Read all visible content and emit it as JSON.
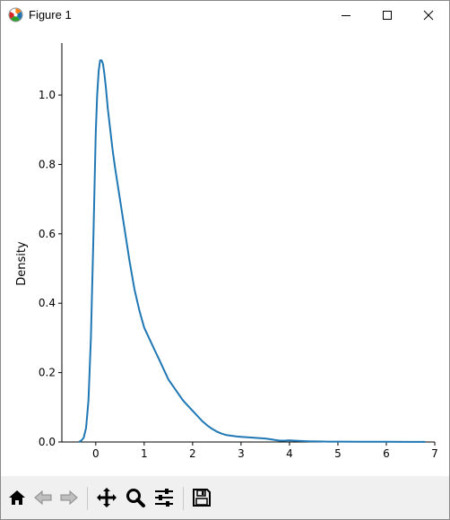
{
  "window": {
    "title": "Figure 1",
    "controls": {
      "minimize": "minimize-icon",
      "maximize": "maximize-icon",
      "close": "close-icon"
    }
  },
  "toolbar": {
    "buttons": [
      {
        "name": "home-button",
        "icon": "home-icon"
      },
      {
        "name": "back-button",
        "icon": "left-arrow-icon"
      },
      {
        "name": "forward-button",
        "icon": "right-arrow-icon"
      },
      {
        "name": "pan-button",
        "icon": "move-icon"
      },
      {
        "name": "zoom-button",
        "icon": "magnifier-icon"
      },
      {
        "name": "configure-subplots-button",
        "icon": "sliders-icon"
      },
      {
        "name": "save-button",
        "icon": "floppy-disk-icon"
      }
    ]
  },
  "chart_data": {
    "type": "line",
    "title": "",
    "xlabel": "",
    "ylabel": "Density",
    "xlim": [
      -0.7,
      7.0
    ],
    "ylim": [
      0.0,
      1.15
    ],
    "xticks": [
      0,
      1,
      2,
      3,
      4,
      5,
      6,
      7
    ],
    "yticks": [
      0.0,
      0.2,
      0.4,
      0.6,
      0.8,
      1.0
    ],
    "xtick_labels": [
      "0",
      "1",
      "2",
      "3",
      "4",
      "5",
      "6",
      "7"
    ],
    "ytick_labels": [
      "0.0",
      "0.2",
      "0.4",
      "0.6",
      "0.8",
      "1.0"
    ],
    "grid": false,
    "line_color": "#1f77b4",
    "series": [
      {
        "x": [
          -0.35,
          -0.3,
          -0.25,
          -0.2,
          -0.15,
          -0.1,
          -0.05,
          0.0,
          0.03,
          0.06,
          0.09,
          0.12,
          0.15,
          0.18,
          0.21,
          0.25,
          0.3,
          0.35,
          0.4,
          0.5,
          0.6,
          0.7,
          0.8,
          0.9,
          1.0,
          1.1,
          1.2,
          1.3,
          1.4,
          1.5,
          1.6,
          1.7,
          1.8,
          1.9,
          2.0,
          2.1,
          2.2,
          2.3,
          2.4,
          2.5,
          2.6,
          2.7,
          2.8,
          2.9,
          3.0,
          3.1,
          3.2,
          3.3,
          3.4,
          3.5,
          3.6,
          3.7,
          3.8,
          3.9,
          4.0,
          4.1,
          4.2,
          4.4,
          4.6,
          4.8,
          5.0,
          5.5,
          6.0,
          6.5,
          6.8
        ],
        "y": [
          0.0,
          0.004,
          0.012,
          0.04,
          0.12,
          0.3,
          0.58,
          0.89,
          1.0,
          1.07,
          1.1,
          1.1,
          1.09,
          1.06,
          1.02,
          0.96,
          0.9,
          0.84,
          0.79,
          0.7,
          0.61,
          0.52,
          0.44,
          0.38,
          0.33,
          0.3,
          0.27,
          0.24,
          0.21,
          0.18,
          0.16,
          0.14,
          0.12,
          0.105,
          0.09,
          0.075,
          0.06,
          0.048,
          0.038,
          0.03,
          0.024,
          0.02,
          0.018,
          0.016,
          0.015,
          0.014,
          0.013,
          0.012,
          0.011,
          0.01,
          0.008,
          0.006,
          0.004,
          0.004,
          0.005,
          0.004,
          0.003,
          0.002,
          0.0015,
          0.001,
          0.001,
          0.0005,
          0.0004,
          0.0003,
          0.0002
        ]
      }
    ]
  }
}
